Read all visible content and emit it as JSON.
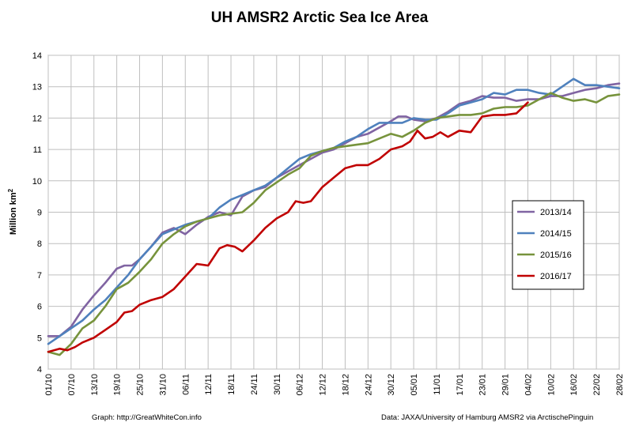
{
  "chart_data": {
    "type": "line",
    "title": "UH AMSR2 Arctic Sea Ice Area",
    "ylabel": "Million km",
    "ylabel_sup": "2",
    "xlabel": "",
    "ylim": [
      4,
      14
    ],
    "yticks": [
      4,
      5,
      6,
      7,
      8,
      9,
      10,
      11,
      12,
      13,
      14
    ],
    "x_range_days": [
      0,
      150
    ],
    "xticks": [
      {
        "day": 0,
        "label": "01/10"
      },
      {
        "day": 6,
        "label": "07/10"
      },
      {
        "day": 12,
        "label": "13/10"
      },
      {
        "day": 18,
        "label": "19/10"
      },
      {
        "day": 24,
        "label": "25/10"
      },
      {
        "day": 30,
        "label": "31/10"
      },
      {
        "day": 36,
        "label": "06/11"
      },
      {
        "day": 42,
        "label": "12/11"
      },
      {
        "day": 48,
        "label": "18/11"
      },
      {
        "day": 54,
        "label": "24/11"
      },
      {
        "day": 60,
        "label": "30/11"
      },
      {
        "day": 66,
        "label": "06/12"
      },
      {
        "day": 72,
        "label": "12/12"
      },
      {
        "day": 78,
        "label": "18/12"
      },
      {
        "day": 84,
        "label": "24/12"
      },
      {
        "day": 90,
        "label": "30/12"
      },
      {
        "day": 96,
        "label": "05/01"
      },
      {
        "day": 102,
        "label": "11/01"
      },
      {
        "day": 108,
        "label": "17/01"
      },
      {
        "day": 114,
        "label": "23/01"
      },
      {
        "day": 120,
        "label": "29/01"
      },
      {
        "day": 126,
        "label": "04/02"
      },
      {
        "day": 132,
        "label": "10/02"
      },
      {
        "day": 138,
        "label": "16/02"
      },
      {
        "day": 144,
        "label": "22/02"
      },
      {
        "day": 150,
        "label": "28/02"
      }
    ],
    "grid": true,
    "legend_position": "right",
    "series": [
      {
        "name": "2013/14",
        "color": "#8064a2",
        "x": [
          0,
          3,
          6,
          9,
          12,
          15,
          18,
          20,
          22,
          24,
          27,
          30,
          33,
          36,
          39,
          42,
          45,
          48,
          51,
          54,
          57,
          60,
          63,
          66,
          69,
          72,
          75,
          78,
          81,
          84,
          87,
          90,
          92,
          94,
          96,
          99,
          102,
          105,
          108,
          111,
          114,
          117,
          120,
          123,
          126,
          129,
          132,
          135,
          138,
          141,
          144,
          147,
          150
        ],
        "y": [
          5.05,
          5.05,
          5.35,
          5.9,
          6.35,
          6.75,
          7.2,
          7.3,
          7.3,
          7.5,
          7.9,
          8.35,
          8.5,
          8.3,
          8.6,
          8.85,
          9.0,
          8.9,
          9.5,
          9.7,
          9.8,
          10.1,
          10.3,
          10.5,
          10.7,
          10.9,
          11.0,
          11.2,
          11.4,
          11.5,
          11.7,
          11.9,
          12.05,
          12.05,
          11.95,
          11.9,
          12.0,
          12.2,
          12.45,
          12.55,
          12.7,
          12.65,
          12.65,
          12.55,
          12.6,
          12.6,
          12.7,
          12.7,
          12.8,
          12.9,
          12.95,
          13.05,
          13.1
        ]
      },
      {
        "name": "2014/15",
        "color": "#4f81bd",
        "x": [
          0,
          3,
          6,
          9,
          12,
          15,
          18,
          21,
          24,
          27,
          30,
          33,
          36,
          39,
          42,
          45,
          48,
          51,
          54,
          57,
          60,
          63,
          66,
          69,
          72,
          75,
          78,
          81,
          84,
          87,
          90,
          93,
          96,
          99,
          102,
          105,
          108,
          111,
          114,
          117,
          120,
          123,
          126,
          129,
          132,
          135,
          138,
          141,
          144,
          147,
          150
        ],
        "y": [
          4.8,
          5.05,
          5.3,
          5.55,
          5.9,
          6.2,
          6.6,
          7.0,
          7.5,
          7.9,
          8.3,
          8.45,
          8.6,
          8.7,
          8.8,
          9.15,
          9.4,
          9.55,
          9.7,
          9.85,
          10.1,
          10.4,
          10.7,
          10.85,
          10.95,
          11.05,
          11.25,
          11.4,
          11.65,
          11.85,
          11.85,
          11.85,
          12.0,
          11.95,
          11.95,
          12.15,
          12.4,
          12.5,
          12.6,
          12.8,
          12.75,
          12.9,
          12.9,
          12.8,
          12.75,
          13.0,
          13.25,
          13.05,
          13.05,
          13.0,
          12.95
        ]
      },
      {
        "name": "2015/16",
        "color": "#77933c",
        "x": [
          0,
          3,
          6,
          9,
          12,
          15,
          18,
          21,
          24,
          27,
          30,
          33,
          36,
          39,
          42,
          45,
          48,
          51,
          54,
          57,
          60,
          63,
          66,
          69,
          72,
          75,
          78,
          81,
          84,
          87,
          90,
          93,
          96,
          99,
          102,
          105,
          108,
          111,
          114,
          117,
          120,
          123,
          126,
          129,
          132,
          135,
          138,
          141,
          144,
          147,
          150
        ],
        "y": [
          4.55,
          4.45,
          4.8,
          5.3,
          5.55,
          6.0,
          6.55,
          6.75,
          7.1,
          7.5,
          8.0,
          8.3,
          8.55,
          8.7,
          8.8,
          8.9,
          8.95,
          9.0,
          9.3,
          9.7,
          9.95,
          10.2,
          10.4,
          10.8,
          10.95,
          11.05,
          11.1,
          11.15,
          11.2,
          11.35,
          11.5,
          11.4,
          11.6,
          11.85,
          12.0,
          12.05,
          12.1,
          12.1,
          12.15,
          12.3,
          12.35,
          12.35,
          12.4,
          12.6,
          12.8,
          12.65,
          12.55,
          12.6,
          12.5,
          12.7,
          12.75
        ]
      },
      {
        "name": "2016/17",
        "color": "#c00000",
        "x": [
          0,
          3,
          5,
          7,
          9,
          12,
          15,
          18,
          20,
          22,
          24,
          27,
          30,
          33,
          36,
          39,
          42,
          45,
          47,
          49,
          51,
          54,
          57,
          60,
          63,
          65,
          67,
          69,
          72,
          75,
          78,
          81,
          84,
          87,
          90,
          93,
          95,
          97,
          99,
          101,
          103,
          105,
          108,
          111,
          114,
          117,
          120,
          123,
          126
        ],
        "y": [
          4.55,
          4.65,
          4.6,
          4.7,
          4.85,
          5.0,
          5.25,
          5.5,
          5.8,
          5.85,
          6.05,
          6.2,
          6.3,
          6.55,
          6.95,
          7.35,
          7.3,
          7.85,
          7.95,
          7.9,
          7.75,
          8.1,
          8.5,
          8.8,
          9.0,
          9.35,
          9.3,
          9.35,
          9.8,
          10.1,
          10.4,
          10.5,
          10.5,
          10.7,
          11.0,
          11.1,
          11.25,
          11.6,
          11.35,
          11.4,
          11.55,
          11.4,
          11.6,
          11.55,
          12.05,
          12.1,
          12.1,
          12.15,
          12.5
        ]
      }
    ]
  },
  "footer": {
    "left": "Graph: http://GreatWhiteCon.info",
    "right": "Data: JAXA/University of Hamburg AMSR2 via ArctischePinguin"
  }
}
